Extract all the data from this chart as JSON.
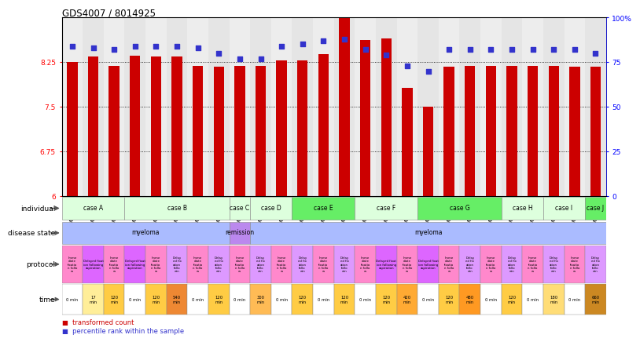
{
  "title": "GDS4007 / 8014925",
  "samples": [
    "GSM879509",
    "GSM879510",
    "GSM879511",
    "GSM879512",
    "GSM879513",
    "GSM879514",
    "GSM879517",
    "GSM879518",
    "GSM879519",
    "GSM879520",
    "GSM879525",
    "GSM879526",
    "GSM879527",
    "GSM879528",
    "GSM879529",
    "GSM879530",
    "GSM879531",
    "GSM879532",
    "GSM879533",
    "GSM879534",
    "GSM879535",
    "GSM879536",
    "GSM879537",
    "GSM879538",
    "GSM879539",
    "GSM879540"
  ],
  "red_values": [
    8.25,
    8.35,
    8.19,
    8.36,
    8.35,
    8.35,
    8.19,
    8.17,
    8.19,
    8.19,
    8.28,
    8.28,
    8.38,
    9.0,
    8.62,
    8.65,
    7.82,
    7.5,
    8.17,
    8.19,
    8.19,
    8.19,
    8.19,
    8.19,
    8.17,
    8.17
  ],
  "blue_values": [
    84,
    83,
    82,
    84,
    84,
    84,
    83,
    80,
    77,
    77,
    84,
    85,
    87,
    88,
    82,
    79,
    73,
    70,
    82,
    82,
    82,
    82,
    82,
    82,
    82,
    80
  ],
  "ylim_left": [
    6,
    9
  ],
  "ylim_right": [
    0,
    100
  ],
  "yticks_left": [
    6,
    6.75,
    7.5,
    8.25
  ],
  "yticks_right": [
    0,
    25,
    50,
    75,
    100
  ],
  "ytick_labels_left": [
    "6",
    "6.75",
    "7.5",
    "8.25"
  ],
  "ytick_labels_right": [
    "0",
    "25",
    "50",
    "75",
    "100%"
  ],
  "hlines": [
    6.75,
    7.5,
    8.25
  ],
  "bar_color": "#CC0000",
  "dot_color": "#3333CC",
  "plot_bg": "#FFFFFF",
  "individual_groups": [
    {
      "label": "case A",
      "start": 0,
      "end": 2,
      "color": "#DDFFDD"
    },
    {
      "label": "case B",
      "start": 3,
      "end": 7,
      "color": "#DDFFDD"
    },
    {
      "label": "case C",
      "start": 8,
      "end": 8,
      "color": "#DDFFDD"
    },
    {
      "label": "case D",
      "start": 9,
      "end": 10,
      "color": "#DDFFDD"
    },
    {
      "label": "case E",
      "start": 11,
      "end": 13,
      "color": "#66EE66"
    },
    {
      "label": "case F",
      "start": 14,
      "end": 16,
      "color": "#DDFFDD"
    },
    {
      "label": "case G",
      "start": 17,
      "end": 20,
      "color": "#66EE66"
    },
    {
      "label": "case H",
      "start": 21,
      "end": 22,
      "color": "#DDFFDD"
    },
    {
      "label": "case I",
      "start": 23,
      "end": 24,
      "color": "#DDFFDD"
    },
    {
      "label": "case J",
      "start": 25,
      "end": 25,
      "color": "#66EE66"
    }
  ],
  "disease_groups": [
    {
      "label": "myeloma",
      "start": 0,
      "end": 7,
      "color": "#AABBFF"
    },
    {
      "label": "remission",
      "start": 8,
      "end": 8,
      "color": "#BB88EE"
    },
    {
      "label": "myeloma",
      "start": 9,
      "end": 25,
      "color": "#AABBFF"
    }
  ],
  "protocol_data": [
    {
      "label": "Imme\ndiate\nfixatio\nn follo\nw",
      "color": "#FF88CC"
    },
    {
      "label": "Delayed fixat\nion following\naspiration",
      "color": "#DD66FF"
    },
    {
      "label": "Imme\ndiate\nfixatio\nn follo\nw",
      "color": "#FF88CC"
    },
    {
      "label": "Delayed fixat\nion following\naspiration",
      "color": "#DD66FF"
    },
    {
      "label": "Imme\ndiate\nfixatio\nn follo\nw",
      "color": "#FF88CC"
    },
    {
      "label": "Delay\ned fix\nation\nfollo\nwin",
      "color": "#DD99FF"
    },
    {
      "label": "Imme\ndiate\nfixatio\nn follo\nw",
      "color": "#FF88CC"
    },
    {
      "label": "Delay\ned fix\nation\nfollo\nwin",
      "color": "#DD99FF"
    },
    {
      "label": "Imme\ndiate\nfixatio\nn follo\nw",
      "color": "#FF88CC"
    },
    {
      "label": "Delay\ned fix\nation\nfollo\nwin",
      "color": "#DD99FF"
    },
    {
      "label": "Imme\ndiate\nfixatio\nn follo\nw",
      "color": "#FF88CC"
    },
    {
      "label": "Delay\ned fix\nation\nfollo\nwin",
      "color": "#DD99FF"
    },
    {
      "label": "Imme\ndiate\nfixatio\nn follo\nw",
      "color": "#FF88CC"
    },
    {
      "label": "Delay\ned fix\nation\nfollo\nwin",
      "color": "#DD99FF"
    },
    {
      "label": "Imme\ndiate\nfixatio\nn follo\nw",
      "color": "#FF88CC"
    },
    {
      "label": "Delayed fixat\nion following\naspiration",
      "color": "#DD66FF"
    },
    {
      "label": "Imme\ndiate\nfixatio\nn follo\nw",
      "color": "#FF88CC"
    },
    {
      "label": "Delayed fixat\nion following\naspiration",
      "color": "#DD66FF"
    },
    {
      "label": "Imme\ndiate\nfixatio\nn follo\nw",
      "color": "#FF88CC"
    },
    {
      "label": "Delay\ned fix\nation\nfollo\nwin",
      "color": "#DD99FF"
    },
    {
      "label": "Imme\ndiate\nfixatio\nn follo\nw",
      "color": "#FF88CC"
    },
    {
      "label": "Delay\ned fix\nation\nfollo\nwin",
      "color": "#DD99FF"
    },
    {
      "label": "Imme\ndiate\nfixatio\nn follo\nw",
      "color": "#FF88CC"
    },
    {
      "label": "Delay\ned fix\nation\nfollo\nwin",
      "color": "#DD99FF"
    },
    {
      "label": "Imme\ndiate\nfixatio\nn follo\nw",
      "color": "#FF88CC"
    },
    {
      "label": "Delay\ned fix\nation\nfollo\nwin",
      "color": "#DD99FF"
    }
  ],
  "time_data": [
    {
      "label": "0 min",
      "color": "#FFFFFF"
    },
    {
      "label": "17\nmin",
      "color": "#FFEE99"
    },
    {
      "label": "120\nmin",
      "color": "#FFCC44"
    },
    {
      "label": "0 min",
      "color": "#FFFFFF"
    },
    {
      "label": "120\nmin",
      "color": "#FFCC44"
    },
    {
      "label": "540\nmin",
      "color": "#EE8833"
    },
    {
      "label": "0 min",
      "color": "#FFFFFF"
    },
    {
      "label": "120\nmin",
      "color": "#FFCC44"
    },
    {
      "label": "0 min",
      "color": "#FFFFFF"
    },
    {
      "label": "300\nmin",
      "color": "#FFBB55"
    },
    {
      "label": "0 min",
      "color": "#FFFFFF"
    },
    {
      "label": "120\nmin",
      "color": "#FFCC44"
    },
    {
      "label": "0 min",
      "color": "#FFFFFF"
    },
    {
      "label": "120\nmin",
      "color": "#FFCC44"
    },
    {
      "label": "0 min",
      "color": "#FFFFFF"
    },
    {
      "label": "120\nmin",
      "color": "#FFCC44"
    },
    {
      "label": "420\nmin",
      "color": "#FFAA33"
    },
    {
      "label": "0 min",
      "color": "#FFFFFF"
    },
    {
      "label": "120\nmin",
      "color": "#FFCC44"
    },
    {
      "label": "480\nmin",
      "color": "#FF9922"
    },
    {
      "label": "0 min",
      "color": "#FFFFFF"
    },
    {
      "label": "120\nmin",
      "color": "#FFCC44"
    },
    {
      "label": "0 min",
      "color": "#FFFFFF"
    },
    {
      "label": "180\nmin",
      "color": "#FFDD77"
    },
    {
      "label": "0 min",
      "color": "#FFFFFF"
    },
    {
      "label": "660\nmin",
      "color": "#CC8822"
    }
  ],
  "row_labels": [
    "individual",
    "disease state",
    "protocol",
    "time"
  ],
  "legend_red": "transformed count",
  "legend_blue": "percentile rank within the sample"
}
